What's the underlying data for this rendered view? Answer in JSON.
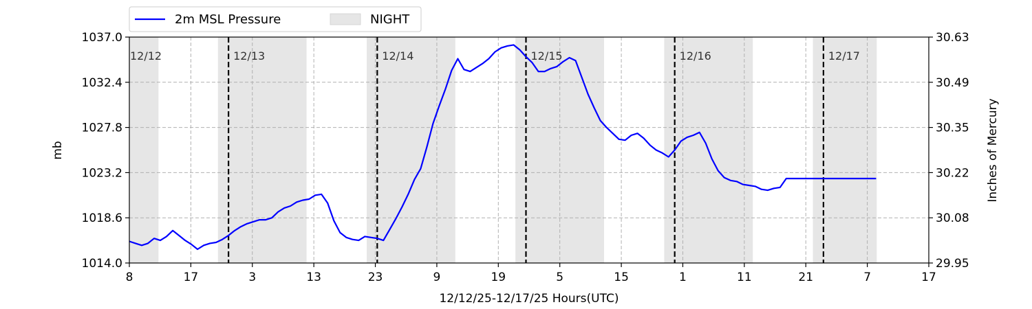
{
  "chart_data": {
    "type": "line",
    "xlabel": "12/12/25-12/17/25  Hours(UTC)",
    "ylabel": "mb",
    "y2label": "Inches of Mercury",
    "x_tick_labels": [
      "8",
      "17",
      "3",
      "13",
      "23",
      "9",
      "19",
      "5",
      "15",
      "1",
      "11",
      "21",
      "7",
      "17"
    ],
    "xlim_hours": [
      0,
      129
    ],
    "ylim": [
      1014.0,
      1037.0
    ],
    "y_ticks": [
      "1014.0",
      "1018.6",
      "1023.2",
      "1027.8",
      "1032.4",
      "1037.0"
    ],
    "y2_ticks": [
      "29.95",
      "30.08",
      "30.22",
      "30.35",
      "30.49",
      "30.63"
    ],
    "grid": true,
    "legend": {
      "placement": "top-left",
      "entries": [
        {
          "label": "2m MSL Pressure",
          "kind": "line",
          "color": "#0000ff"
        },
        {
          "label": "NIGHT",
          "kind": "patch",
          "color": "#e6e6e6"
        }
      ]
    },
    "day_markers": [
      {
        "hour": 0,
        "label": "12/12",
        "dashed_line": false
      },
      {
        "hour": 16,
        "label": "12/13",
        "dashed_line": true
      },
      {
        "hour": 40,
        "label": "12/14",
        "dashed_line": true
      },
      {
        "hour": 64,
        "label": "12/15",
        "dashed_line": true
      },
      {
        "hour": 88,
        "label": "12/16",
        "dashed_line": true
      },
      {
        "hour": 112,
        "label": "12/17",
        "dashed_line": true
      }
    ],
    "night_bands": [
      [
        0,
        4.7
      ],
      [
        14.3,
        28.6
      ],
      [
        38.3,
        52.6
      ],
      [
        62.3,
        76.6
      ],
      [
        86.3,
        100.6
      ],
      [
        110.3,
        120.6
      ]
    ],
    "series": [
      {
        "name": "2m MSL Pressure",
        "color": "#0000ff",
        "x": [
          0,
          1,
          2,
          3,
          4,
          5,
          6,
          7,
          8,
          9,
          10,
          11,
          12,
          13,
          14,
          15,
          16,
          17,
          18,
          19,
          20,
          21,
          22,
          23,
          24,
          25,
          26,
          27,
          28,
          29,
          30,
          31,
          32,
          33,
          34,
          35,
          36,
          37,
          38,
          39,
          40,
          41,
          42,
          43,
          44,
          45,
          46,
          47,
          48,
          49,
          50,
          51,
          52,
          53,
          54,
          55,
          56,
          57,
          58,
          59,
          60,
          61,
          62,
          63,
          64,
          65,
          66,
          67,
          68,
          69,
          70,
          71,
          72,
          73,
          74,
          75,
          76,
          77,
          78,
          79,
          80,
          81,
          82,
          83,
          84,
          85,
          86,
          87,
          88,
          89,
          90,
          91,
          92,
          93,
          94,
          95,
          96,
          97,
          98,
          99,
          100,
          101,
          102,
          103,
          104,
          105,
          106,
          107,
          108,
          109,
          110,
          111,
          112,
          113,
          114,
          115,
          116,
          117,
          118,
          119,
          120,
          120.5
        ],
        "values": [
          1016.2,
          1016.0,
          1015.8,
          1016.0,
          1016.5,
          1016.3,
          1016.7,
          1017.3,
          1016.8,
          1016.3,
          1015.9,
          1015.4,
          1015.8,
          1016.0,
          1016.1,
          1016.4,
          1016.8,
          1017.3,
          1017.7,
          1018.0,
          1018.2,
          1018.4,
          1018.4,
          1018.6,
          1019.2,
          1019.6,
          1019.8,
          1020.2,
          1020.4,
          1020.5,
          1020.9,
          1021.0,
          1020.1,
          1018.3,
          1017.1,
          1016.6,
          1016.4,
          1016.3,
          1016.7,
          1016.6,
          1016.5,
          1016.3,
          1017.4,
          1018.5,
          1019.7,
          1021.0,
          1022.5,
          1023.6,
          1025.8,
          1028.2,
          1030.0,
          1031.7,
          1033.6,
          1034.8,
          1033.7,
          1033.5,
          1033.9,
          1034.3,
          1034.8,
          1035.5,
          1035.9,
          1036.1,
          1036.2,
          1035.7,
          1035.0,
          1034.4,
          1033.5,
          1033.5,
          1033.8,
          1034.0,
          1034.5,
          1034.9,
          1034.6,
          1032.9,
          1031.2,
          1029.8,
          1028.5,
          1027.8,
          1027.2,
          1026.6,
          1026.5,
          1027.0,
          1027.2,
          1026.7,
          1026.0,
          1025.5,
          1025.2,
          1024.8,
          1025.5,
          1026.4,
          1026.8,
          1027.0,
          1027.3,
          1026.2,
          1024.6,
          1023.4,
          1022.7,
          1022.4,
          1022.3,
          1022.0,
          1021.9,
          1021.8,
          1021.5,
          1021.4,
          1021.6,
          1021.7,
          1022.6,
          1022.6,
          1022.6,
          1022.6,
          1022.6,
          1022.6,
          1022.6,
          1022.6,
          1022.6,
          1022.6,
          1022.6,
          1022.6,
          1022.6,
          1022.6,
          1022.6,
          1022.6
        ]
      }
    ]
  }
}
